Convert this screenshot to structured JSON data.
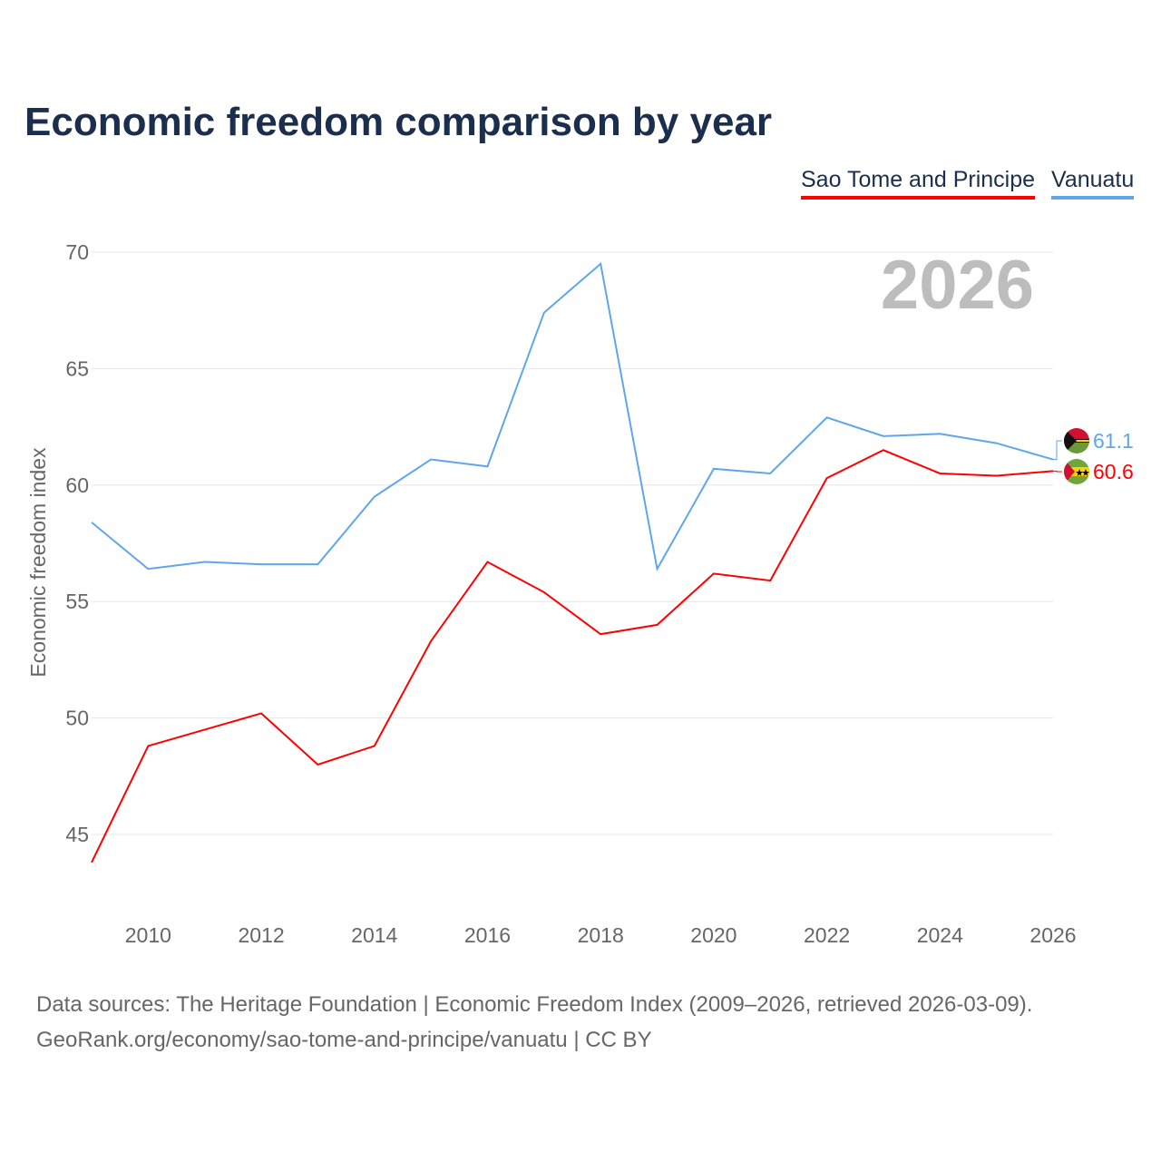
{
  "chart_data": {
    "type": "line",
    "title": "Economic freedom comparison by year",
    "ylabel": "Economic freedom index",
    "xlabel": "",
    "year_watermark": "2026",
    "x": [
      2009,
      2010,
      2011,
      2012,
      2013,
      2014,
      2015,
      2016,
      2017,
      2018,
      2019,
      2020,
      2021,
      2022,
      2023,
      2024,
      2025,
      2026
    ],
    "xticks": [
      "2010",
      "2012",
      "2014",
      "2016",
      "2018",
      "2020",
      "2022",
      "2024",
      "2026"
    ],
    "yticks": [
      "45",
      "50",
      "55",
      "60",
      "65",
      "70"
    ],
    "ylim": [
      42,
      71.5
    ],
    "xlim": [
      2009,
      2026
    ],
    "grid": true,
    "legend_position": "top-right",
    "series": [
      {
        "name": "Sao Tome and Principe",
        "color": "#ff0000",
        "end_label": "60.6",
        "values": [
          43.8,
          48.8,
          49.5,
          50.2,
          48.0,
          48.8,
          53.3,
          56.7,
          55.4,
          53.6,
          54.0,
          56.2,
          55.9,
          60.3,
          61.5,
          60.5,
          60.4,
          60.6
        ]
      },
      {
        "name": "Vanuatu",
        "color": "#5fa6ea",
        "end_label": "61.1",
        "values": [
          58.4,
          56.4,
          56.7,
          56.6,
          56.6,
          59.5,
          61.1,
          60.8,
          67.4,
          69.5,
          56.4,
          60.7,
          60.5,
          62.9,
          62.1,
          62.2,
          61.8,
          61.1
        ]
      }
    ]
  },
  "footer": {
    "line1": "Data sources: The Heritage Foundation | Economic Freedom Index (2009–2026, retrieved 2026-03-09).",
    "line2": "GeoRank.org/economy/sao-tome-and-principe/vanuatu | CC BY"
  }
}
